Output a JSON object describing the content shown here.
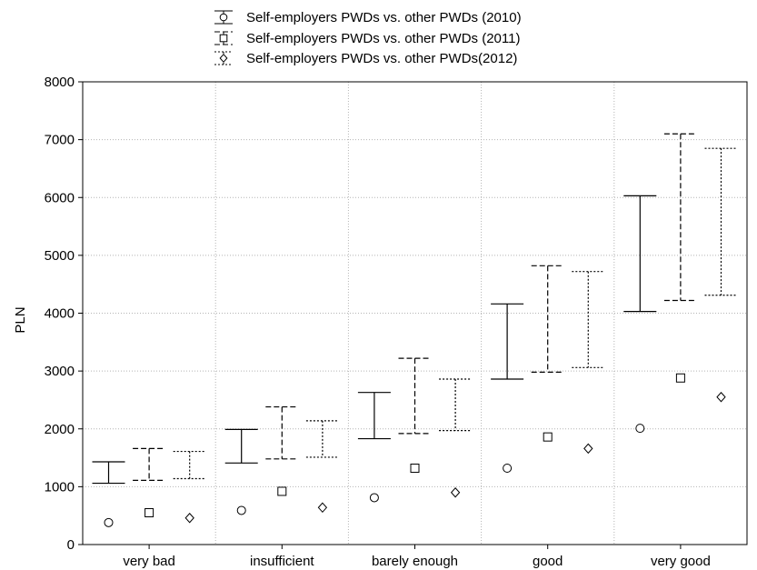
{
  "chart_data": {
    "type": "errorbar",
    "ylabel": "PLN",
    "ylim": [
      0,
      8000
    ],
    "yticks": [
      0,
      1000,
      2000,
      3000,
      4000,
      5000,
      6000,
      7000,
      8000
    ],
    "grid": true,
    "legend_position": "top-center",
    "categories": [
      "very bad",
      "insufficient",
      "barely enough",
      "good",
      "very good"
    ],
    "series": [
      {
        "name": "Self-employers PWDs vs. other PWDs (2010)",
        "marker": "circle",
        "line_style": "solid",
        "values": [
          380,
          590,
          810,
          1320,
          2010
        ],
        "lower": [
          1060,
          1410,
          1830,
          2860,
          4030
        ],
        "upper": [
          1430,
          1990,
          2630,
          4160,
          6030
        ]
      },
      {
        "name": "Self-employers PWDs vs. other PWDs (2011)",
        "marker": "square",
        "line_style": "dashed",
        "values": [
          550,
          920,
          1320,
          1860,
          2880
        ],
        "lower": [
          1110,
          1480,
          1920,
          2980,
          4220
        ],
        "upper": [
          1660,
          2380,
          3220,
          4820,
          7100
        ]
      },
      {
        "name": "Self-employers PWDs vs. other PWDs(2012)",
        "marker": "diamond",
        "line_style": "dotted",
        "values": [
          460,
          640,
          900,
          1660,
          2550
        ],
        "lower": [
          1140,
          1510,
          1970,
          3060,
          4310
        ],
        "upper": [
          1610,
          2140,
          2860,
          4720,
          6850
        ]
      }
    ]
  }
}
